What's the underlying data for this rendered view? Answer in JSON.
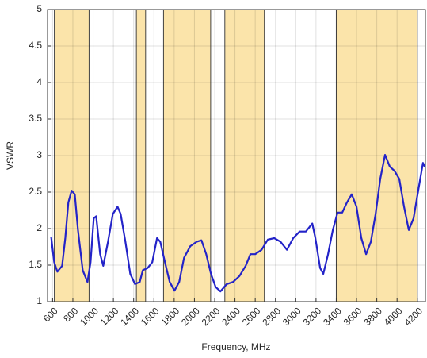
{
  "chart_data": {
    "type": "line",
    "xlabel": "Frequency, MHz",
    "ylabel": "VSWR",
    "xlim": [
      550,
      4280
    ],
    "ylim": [
      1,
      5
    ],
    "xticks": [
      600,
      800,
      1000,
      1200,
      1400,
      1600,
      1800,
      2000,
      2200,
      2400,
      2600,
      2800,
      3000,
      3200,
      3400,
      3600,
      3800,
      4000,
      4200
    ],
    "yticks": [
      1,
      1.5,
      2,
      2.5,
      3,
      3.5,
      4,
      4.5,
      5
    ],
    "grid": true,
    "band_color": "#fbe4aa",
    "band_edge_color": "#444444",
    "bands": [
      [
        617,
        960
      ],
      [
        1427,
        1518
      ],
      [
        1695,
        2160
      ],
      [
        2300,
        2690
      ],
      [
        3400,
        4200
      ]
    ],
    "series": [
      {
        "color": "#2323c8",
        "x": [
          585,
          616,
          647,
          694,
          725,
          756,
          788,
          819,
          850,
          897,
          944,
          975,
          1006,
          1030,
          1069,
          1100,
          1147,
          1194,
          1241,
          1272,
          1319,
          1366,
          1413,
          1460,
          1491,
          1538,
          1584,
          1631,
          1663,
          1709,
          1756,
          1803,
          1850,
          1897,
          1959,
          2022,
          2069,
          2116,
          2163,
          2209,
          2256,
          2319,
          2381,
          2444,
          2506,
          2553,
          2600,
          2663,
          2725,
          2788,
          2850,
          2913,
          2975,
          3038,
          3100,
          3163,
          3194,
          3241,
          3272,
          3319,
          3366,
          3413,
          3459,
          3506,
          3553,
          3600,
          3647,
          3694,
          3741,
          3788,
          3834,
          3881,
          3928,
          3975,
          4022,
          4069,
          4116,
          4163,
          4209,
          4256,
          4275
        ],
        "values": [
          1.89,
          1.54,
          1.41,
          1.49,
          1.87,
          2.36,
          2.52,
          2.47,
          1.98,
          1.43,
          1.27,
          1.54,
          2.14,
          2.17,
          1.65,
          1.49,
          1.82,
          2.2,
          2.3,
          2.2,
          1.82,
          1.38,
          1.24,
          1.27,
          1.43,
          1.46,
          1.54,
          1.87,
          1.82,
          1.54,
          1.27,
          1.15,
          1.27,
          1.6,
          1.76,
          1.82,
          1.84,
          1.65,
          1.38,
          1.2,
          1.14,
          1.24,
          1.27,
          1.35,
          1.49,
          1.65,
          1.65,
          1.71,
          1.85,
          1.87,
          1.82,
          1.71,
          1.87,
          1.96,
          1.96,
          2.07,
          1.87,
          1.46,
          1.38,
          1.65,
          1.98,
          2.22,
          2.22,
          2.36,
          2.47,
          2.3,
          1.87,
          1.65,
          1.82,
          2.2,
          2.68,
          3.01,
          2.85,
          2.79,
          2.68,
          2.3,
          1.98,
          2.14,
          2.52,
          2.9,
          2.84
        ]
      }
    ]
  }
}
